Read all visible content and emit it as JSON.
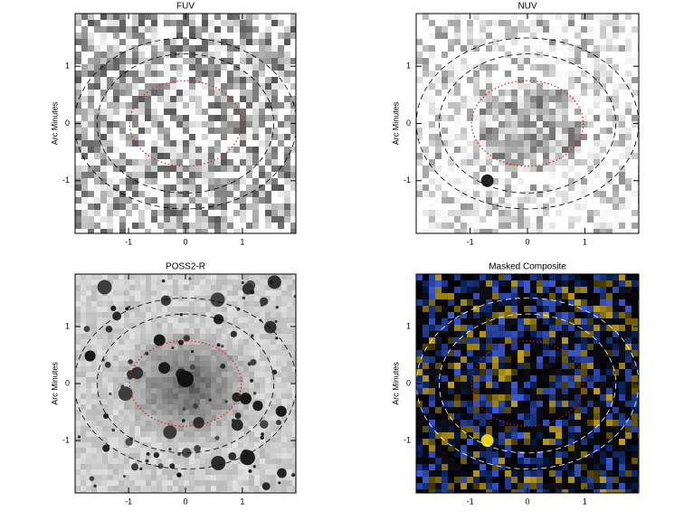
{
  "chart_data": [
    {
      "type": "image",
      "title": "FUV",
      "y_label": "Arc Minutes",
      "xlim": [
        -1.94,
        1.94
      ],
      "ylim": [
        -1.92,
        1.92
      ],
      "xticks": [
        -1,
        0,
        1
      ],
      "yticks": [
        -1,
        0,
        1
      ]
    },
    {
      "type": "image",
      "title": "NUV",
      "y_label": "Arc Minutes",
      "xlim": [
        -1.94,
        1.94
      ],
      "ylim": [
        -1.92,
        1.92
      ],
      "xticks": [
        -1,
        0,
        1
      ],
      "yticks": [
        -1,
        0,
        1
      ]
    },
    {
      "type": "image",
      "title": "POSS2-R",
      "y_label": "Arc Minutes",
      "xlim": [
        -1.94,
        1.94
      ],
      "ylim": [
        -1.92,
        1.92
      ],
      "xticks": [
        -1,
        0,
        1
      ],
      "yticks": [
        -1,
        0,
        1
      ]
    },
    {
      "type": "image",
      "title": "Masked Composite",
      "y_label": "Arc Minutes",
      "xlim": [
        -1.94,
        1.94
      ],
      "ylim": [
        -1.92,
        1.92
      ],
      "xticks": [
        -1,
        0,
        1
      ],
      "yticks": [
        -1,
        0,
        1
      ]
    }
  ]
}
